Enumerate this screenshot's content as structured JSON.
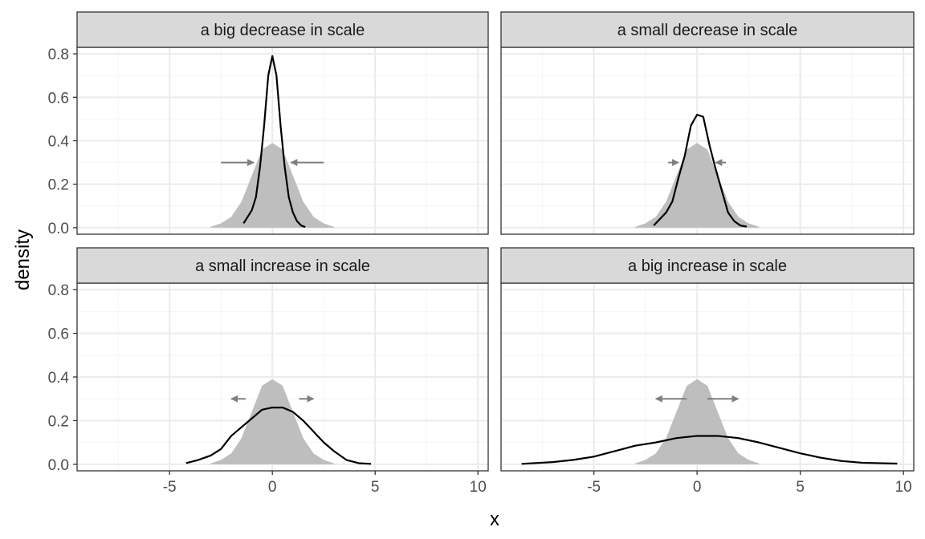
{
  "chart_data": {
    "type": "area",
    "xlabel": "x",
    "ylabel": "density",
    "xlim": [
      -9.5,
      10.5
    ],
    "ylim": [
      -0.03,
      0.83
    ],
    "x_ticks": [
      -5,
      0,
      5,
      10
    ],
    "x_tick_labels": [
      "-5",
      "0",
      "5",
      "10"
    ],
    "y_ticks": [
      0.0,
      0.2,
      0.4,
      0.6,
      0.8
    ],
    "y_tick_labels": [
      "0.0",
      "0.2",
      "0.4",
      "0.6",
      "0.8"
    ],
    "grid": true,
    "colors": {
      "reference_fill": "#bebebe",
      "curve": "#000000",
      "arrow": "#7f7f7f",
      "strip_bg": "#d9d9d9",
      "panel_border": "#333333",
      "grid_major": "#ebebeb",
      "grid_minor": "#f5f5f5"
    },
    "reference_density": {
      "x": [
        -3,
        -2.5,
        -2,
        -1.5,
        -1,
        -0.5,
        0,
        0.5,
        1,
        1.5,
        2,
        2.5,
        3
      ],
      "y": [
        0.004,
        0.02,
        0.05,
        0.12,
        0.24,
        0.36,
        0.39,
        0.36,
        0.24,
        0.12,
        0.05,
        0.02,
        0.004
      ]
    },
    "panels": [
      {
        "title": "a big decrease in scale",
        "curve": {
          "x": [
            -1.4,
            -1.2,
            -1.0,
            -0.8,
            -0.6,
            -0.4,
            -0.2,
            0,
            0.2,
            0.4,
            0.6,
            0.8,
            1.0,
            1.2,
            1.4,
            1.6
          ],
          "y": [
            0.02,
            0.05,
            0.08,
            0.14,
            0.28,
            0.47,
            0.7,
            0.79,
            0.7,
            0.47,
            0.28,
            0.14,
            0.07,
            0.03,
            0.01,
            0.003
          ]
        },
        "arrows": [
          {
            "from": -2.5,
            "to": -0.9,
            "y": 0.3
          },
          {
            "from": 2.5,
            "to": 0.9,
            "y": 0.3
          }
        ]
      },
      {
        "title": "a small decrease in scale",
        "curve": {
          "x": [
            -2.1,
            -1.8,
            -1.5,
            -1.2,
            -0.9,
            -0.6,
            -0.3,
            0,
            0.3,
            0.6,
            0.9,
            1.2,
            1.5,
            1.8,
            2.1,
            2.4
          ],
          "y": [
            0.01,
            0.04,
            0.07,
            0.12,
            0.23,
            0.33,
            0.47,
            0.52,
            0.51,
            0.38,
            0.27,
            0.17,
            0.07,
            0.03,
            0.01,
            0.005
          ]
        },
        "arrows": [
          {
            "from": -1.4,
            "to": -0.9,
            "y": 0.3
          },
          {
            "from": 1.4,
            "to": 0.9,
            "y": 0.3
          }
        ]
      },
      {
        "title": "a small increase in scale",
        "curve": {
          "x": [
            -4.2,
            -3.6,
            -3.0,
            -2.5,
            -2.0,
            -1.5,
            -1.0,
            -0.5,
            0,
            0.5,
            1.0,
            1.5,
            2.0,
            2.5,
            3.0,
            3.6,
            4.2,
            4.8
          ],
          "y": [
            0.005,
            0.02,
            0.04,
            0.07,
            0.13,
            0.17,
            0.21,
            0.25,
            0.26,
            0.26,
            0.24,
            0.2,
            0.15,
            0.1,
            0.06,
            0.02,
            0.005,
            0.002
          ]
        },
        "arrows": [
          {
            "from": -1.3,
            "to": -2.0,
            "y": 0.3
          },
          {
            "from": 1.3,
            "to": 2.0,
            "y": 0.3
          }
        ]
      },
      {
        "title": "a big increase in scale",
        "curve": {
          "x": [
            -8.5,
            -7,
            -6,
            -5,
            -4,
            -3,
            -2,
            -1,
            0,
            1,
            2,
            3,
            4,
            5,
            6,
            7,
            8,
            9.7
          ],
          "y": [
            0.002,
            0.01,
            0.02,
            0.035,
            0.06,
            0.085,
            0.1,
            0.12,
            0.13,
            0.13,
            0.12,
            0.1,
            0.075,
            0.05,
            0.03,
            0.015,
            0.007,
            0.003
          ]
        },
        "arrows": [
          {
            "from": -0.5,
            "to": -2.0,
            "y": 0.3
          },
          {
            "from": 0.5,
            "to": 2.0,
            "y": 0.3
          }
        ]
      }
    ]
  }
}
